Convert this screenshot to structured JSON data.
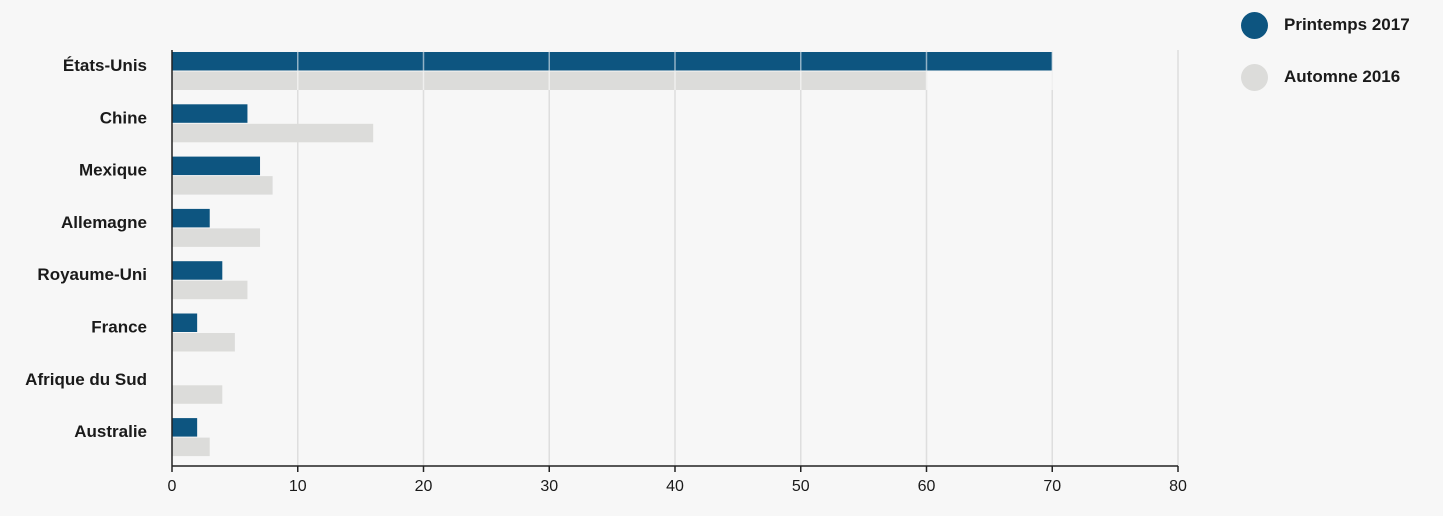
{
  "chart_data": {
    "type": "bar",
    "orientation": "horizontal",
    "categories": [
      "États-Unis",
      "Chine",
      "Mexique",
      "Allemagne",
      "Royaume-Uni",
      "France",
      "Afrique du Sud",
      "Australie"
    ],
    "series": [
      {
        "name": "Printemps 2017",
        "color": "#0d5580",
        "values": [
          70,
          6,
          7,
          3,
          4,
          2,
          0,
          2
        ]
      },
      {
        "name": "Automne 2016",
        "color": "#dcdcda",
        "values": [
          60,
          16,
          8,
          7,
          6,
          5,
          4,
          3
        ]
      }
    ],
    "xlim": [
      0,
      80
    ],
    "x_ticks": [
      0,
      10,
      20,
      30,
      40,
      50,
      60,
      70,
      80
    ],
    "grid": true,
    "legend_position": "top-right",
    "title": "",
    "xlabel": "",
    "ylabel": ""
  }
}
